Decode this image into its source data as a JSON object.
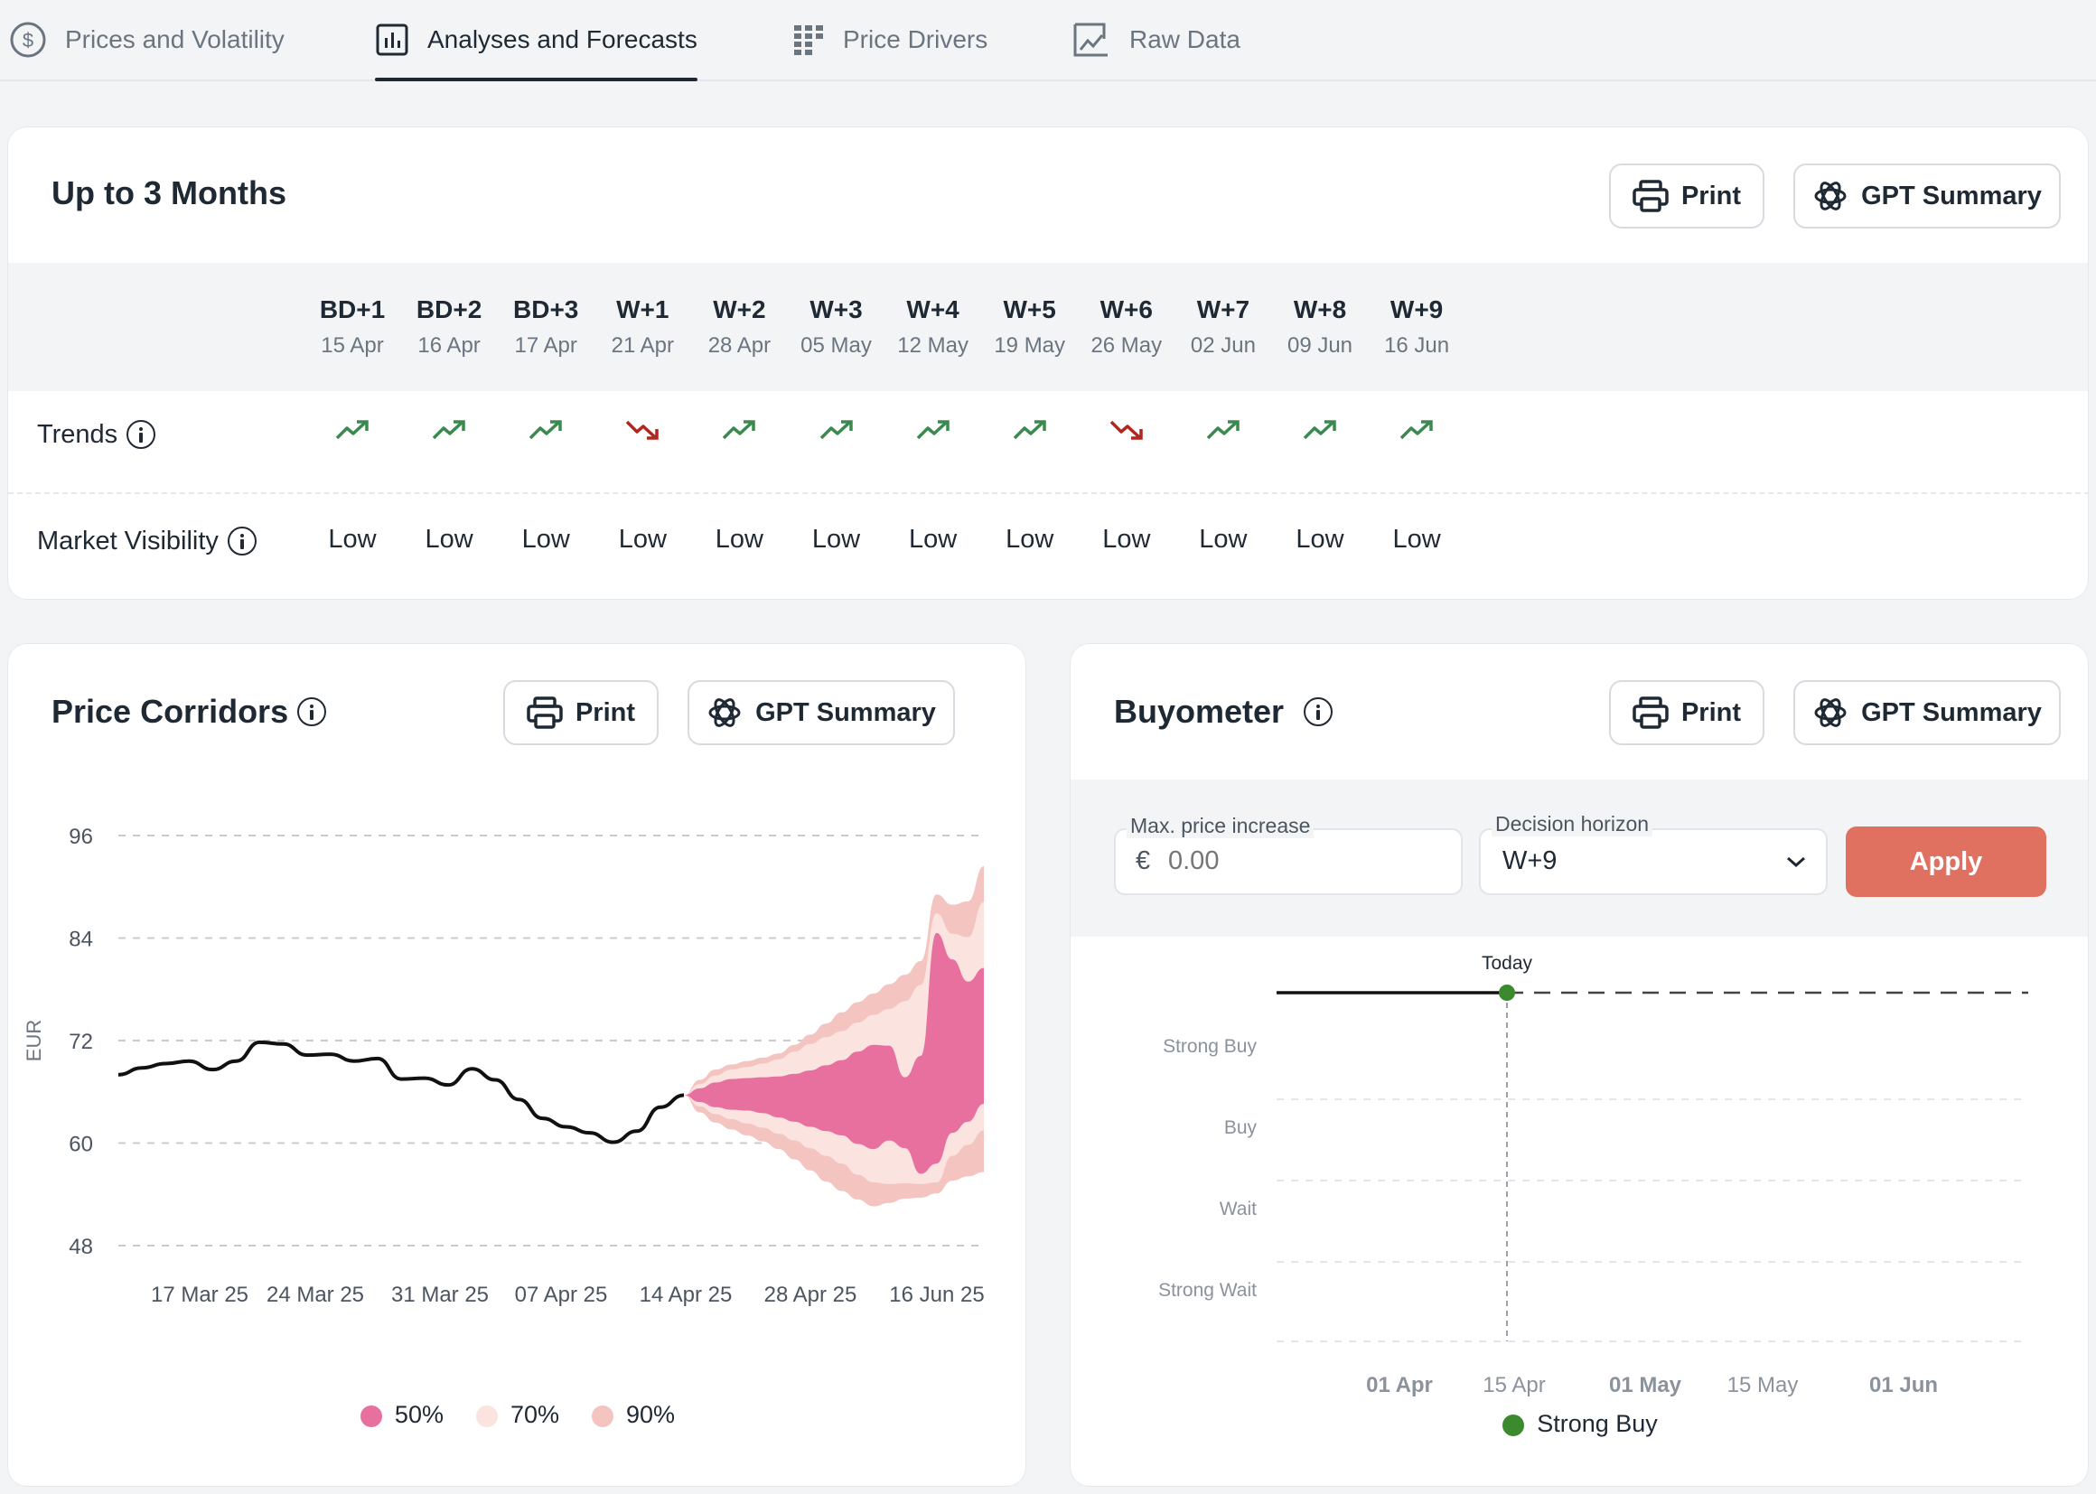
{
  "tabs": [
    {
      "label": "Prices and Volatility",
      "icon": "dollar-circle-icon"
    },
    {
      "label": "Analyses and Forecasts",
      "icon": "bar-chart-icon",
      "active": true
    },
    {
      "label": "Price Drivers",
      "icon": "grid-icon"
    },
    {
      "label": "Raw Data",
      "icon": "chart-line-icon"
    }
  ],
  "forecast": {
    "title": "Up to 3 Months",
    "print_label": "Print",
    "gpt_label": "GPT Summary",
    "row_trends": "Trends",
    "row_visibility": "Market Visibility",
    "columns": [
      {
        "code": "BD+1",
        "date": "15 Apr",
        "trend": "up",
        "visibility": "Low"
      },
      {
        "code": "BD+2",
        "date": "16 Apr",
        "trend": "up",
        "visibility": "Low"
      },
      {
        "code": "BD+3",
        "date": "17 Apr",
        "trend": "up",
        "visibility": "Low"
      },
      {
        "code": "W+1",
        "date": "21 Apr",
        "trend": "down",
        "visibility": "Low"
      },
      {
        "code": "W+2",
        "date": "28 Apr",
        "trend": "up",
        "visibility": "Low"
      },
      {
        "code": "W+3",
        "date": "05 May",
        "trend": "up",
        "visibility": "Low"
      },
      {
        "code": "W+4",
        "date": "12 May",
        "trend": "up",
        "visibility": "Low"
      },
      {
        "code": "W+5",
        "date": "19 May",
        "trend": "up",
        "visibility": "Low"
      },
      {
        "code": "W+6",
        "date": "26 May",
        "trend": "down",
        "visibility": "Low"
      },
      {
        "code": "W+7",
        "date": "02 Jun",
        "trend": "up",
        "visibility": "Low"
      },
      {
        "code": "W+8",
        "date": "09 Jun",
        "trend": "up",
        "visibility": "Low"
      },
      {
        "code": "W+9",
        "date": "16 Jun",
        "trend": "up",
        "visibility": "Low"
      }
    ],
    "colors": {
      "up": "#3a8a4f",
      "down": "#b3261e"
    }
  },
  "corridors": {
    "title": "Price Corridors",
    "print_label": "Print",
    "gpt_label": "GPT Summary",
    "legend": [
      {
        "label": "50%",
        "color": "#e8709f"
      },
      {
        "label": "70%",
        "color": "#fbe3e0"
      },
      {
        "label": "90%",
        "color": "#f3c4c0"
      }
    ]
  },
  "buyometer": {
    "title": "Buyometer",
    "print_label": "Print",
    "gpt_label": "GPT Summary",
    "max_price_label": "Max. price increase",
    "currency": "€",
    "max_price_placeholder": "0.00",
    "horizon_label": "Decision horizon",
    "horizon_value": "W+9",
    "apply_label": "Apply",
    "today_label": "Today",
    "y_levels": [
      "Strong Buy",
      "Buy",
      "Wait",
      "Strong Wait"
    ],
    "x_ticks": [
      "01 Apr",
      "15 Apr",
      "01 May",
      "15 May",
      "01 Jun"
    ],
    "legend": {
      "label": "Strong Buy",
      "color": "#3c8a2e"
    }
  },
  "chart_data": [
    {
      "type": "line",
      "title": "Price Corridors",
      "ylabel": "EUR",
      "ylim": [
        48,
        96
      ],
      "yticks": [
        96,
        84,
        72,
        60,
        48
      ],
      "x_tick_labels": [
        "17 Mar 25",
        "24 Mar 25",
        "31 Mar 25",
        "07 Apr 25",
        "14 Apr 25",
        "28 Apr 25",
        "16 Jun 25"
      ],
      "grid": true,
      "series": [
        {
          "kind": "history",
          "values": [
            68,
            68.8,
            69.3,
            69.6,
            68.6,
            69.6,
            71.8,
            71.6,
            70.3,
            70.4,
            69.6,
            69.9,
            67.5,
            67.6,
            66.8,
            68.7,
            67.4,
            65.1,
            62.9,
            61.9,
            61.2,
            60.1,
            61.4,
            64.2,
            65.6
          ]
        },
        {
          "kind": "band",
          "name": "50%",
          "lower": [
            65.6,
            64.8,
            64.2,
            63.9,
            63.8,
            63.5,
            63,
            62.5,
            61.9,
            61.4,
            60.9,
            59.9,
            59.3,
            60.3,
            59.4,
            56.4,
            57.6,
            61.2,
            62.5,
            64.6
          ],
          "upper": [
            65.6,
            66.4,
            67.1,
            67.5,
            67.6,
            67.7,
            67.8,
            68.1,
            68.5,
            69.1,
            69.7,
            70.7,
            71.5,
            71.4,
            67.7,
            70.2,
            84.6,
            81.5,
            78.9,
            80.5
          ]
        },
        {
          "kind": "band",
          "name": "70%",
          "lower": [
            65.6,
            64.3,
            63.4,
            62.8,
            62.3,
            61.8,
            61.1,
            60.3,
            59.4,
            58.5,
            57.6,
            56.3,
            55.4,
            55.2,
            55.3,
            55.2,
            55.4,
            58.5,
            59.8,
            61.5
          ],
          "upper": [
            65.6,
            66.9,
            67.9,
            68.6,
            68.9,
            69.3,
            69.8,
            70.7,
            71.6,
            72.4,
            73.1,
            74.1,
            75,
            75.7,
            76.6,
            78.5,
            86.9,
            84.5,
            84.1,
            88.2
          ]
        },
        {
          "kind": "band",
          "name": "90%",
          "lower": [
            65.6,
            63.6,
            62.4,
            61.6,
            60.9,
            60.2,
            59.3,
            58.1,
            56.8,
            55.5,
            54.4,
            53.4,
            52.6,
            53,
            53.5,
            53.6,
            54.1,
            55.6,
            56.1,
            56.6
          ],
          "upper": [
            65.6,
            67.4,
            68.6,
            69.2,
            69.6,
            70,
            70.5,
            71.5,
            72.7,
            74,
            75.3,
            76.5,
            77.5,
            78.6,
            79.7,
            81.3,
            89.1,
            87.9,
            88.3,
            92.4
          ]
        }
      ]
    },
    {
      "type": "line",
      "title": "Buyometer",
      "y_categories": [
        "Strong Buy",
        "Buy",
        "Wait",
        "Strong Wait"
      ],
      "x_tick_labels": [
        "01 Apr",
        "15 Apr",
        "01 May",
        "15 May",
        "01 Jun"
      ],
      "series": [
        {
          "name": "Strong Buy",
          "level": "Strong Buy",
          "x_start": "19 Mar",
          "x_end": "14 Apr"
        }
      ],
      "marker": {
        "label": "Today",
        "x": "14 Apr",
        "level": "Strong Buy"
      },
      "projection": {
        "x_start": "14 Apr",
        "x_end": "16 Jun",
        "level": "Strong Buy",
        "style": "dashed"
      }
    }
  ]
}
